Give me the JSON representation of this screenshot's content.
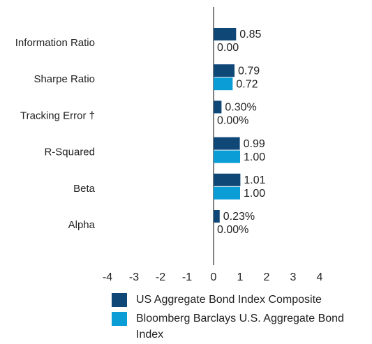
{
  "chart_data": {
    "type": "bar",
    "orientation": "horizontal",
    "categories": [
      "Information Ratio",
      "Sharpe Ratio",
      "Tracking Error †",
      "R-Squared",
      "Beta",
      "Alpha"
    ],
    "series": [
      {
        "name": "US Aggregate Bond Index Composite",
        "color": "#0f4777",
        "values": [
          0.85,
          0.79,
          0.3,
          0.99,
          1.01,
          0.23
        ],
        "value_labels": [
          "0.85",
          "0.79",
          "0.30%",
          "0.99",
          "1.01",
          "0.23%"
        ]
      },
      {
        "name": "Bloomberg Barclays U.S. Aggregate Bond Index",
        "color": "#0a9dd6",
        "values": [
          0.0,
          0.72,
          0.0,
          1.0,
          1.0,
          0.0
        ],
        "value_labels": [
          "0.00",
          "0.72",
          "0.00%",
          "1.00",
          "1.00",
          "0.00%"
        ]
      }
    ],
    "xlim": [
      -4,
      4
    ],
    "xticks": [
      -4,
      -3,
      -2,
      -1,
      0,
      1,
      2,
      3,
      4
    ]
  }
}
